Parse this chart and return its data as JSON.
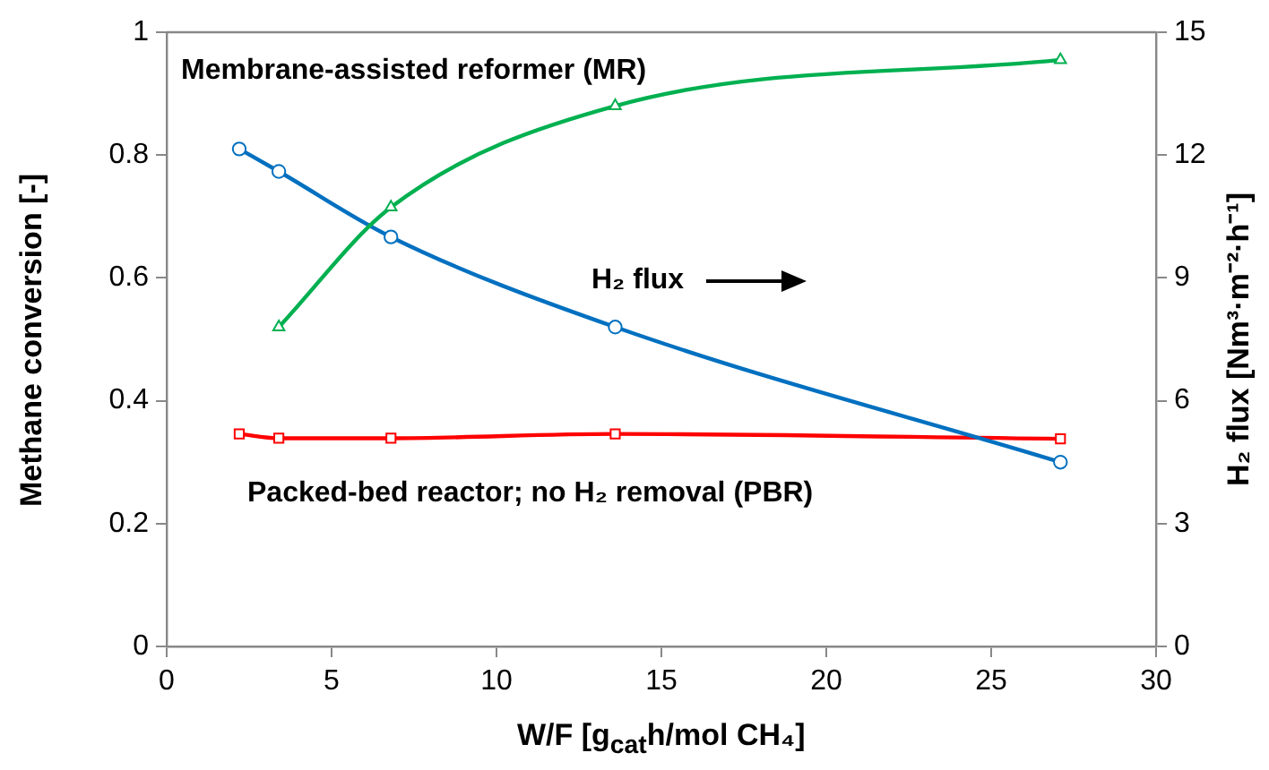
{
  "chart_data": {
    "type": "line",
    "xlabel": "W/F [g$_{cat}$h/mol CH₄]",
    "ylabel": "Methane conversion [-]",
    "y2label": "H₂ flux [Nm³·m⁻²·h⁻¹]",
    "xlim": [
      0,
      30
    ],
    "xticks": [
      0,
      5,
      10,
      15,
      20,
      25,
      30
    ],
    "ylim": [
      0,
      1
    ],
    "yticks": [
      0,
      0.2,
      0.4,
      0.6,
      0.8,
      1
    ],
    "y2lim": [
      0,
      15
    ],
    "y2ticks": [
      0,
      3,
      6,
      9,
      12,
      15
    ],
    "grid": false,
    "legend": false,
    "line_style": "solid",
    "annotations": [
      "Membrane-assisted reformer (MR)",
      "H₂ flux",
      "Packed-bed reactor; no H₂ removal (PBR)"
    ],
    "series": [
      {
        "color": "#00b050",
        "marker": "triangle",
        "x": [
          3.4,
          6.8,
          13.6,
          27.1
        ],
        "values": [
          0.52,
          0.715,
          0.88,
          0.955
        ]
      },
      {
        "color": "#0070c0",
        "marker": "circle",
        "axis": "y2",
        "x": [
          2.2,
          3.4,
          6.8,
          13.6,
          27.1
        ],
        "values": [
          12.15,
          11.6,
          10.0,
          7.8,
          4.5
        ]
      },
      {
        "color": "#ff0000",
        "marker": "square",
        "x": [
          2.2,
          3.4,
          6.8,
          13.6,
          27.1
        ],
        "values": [
          0.346,
          0.339,
          0.339,
          0.346,
          0.338
        ]
      }
    ]
  }
}
